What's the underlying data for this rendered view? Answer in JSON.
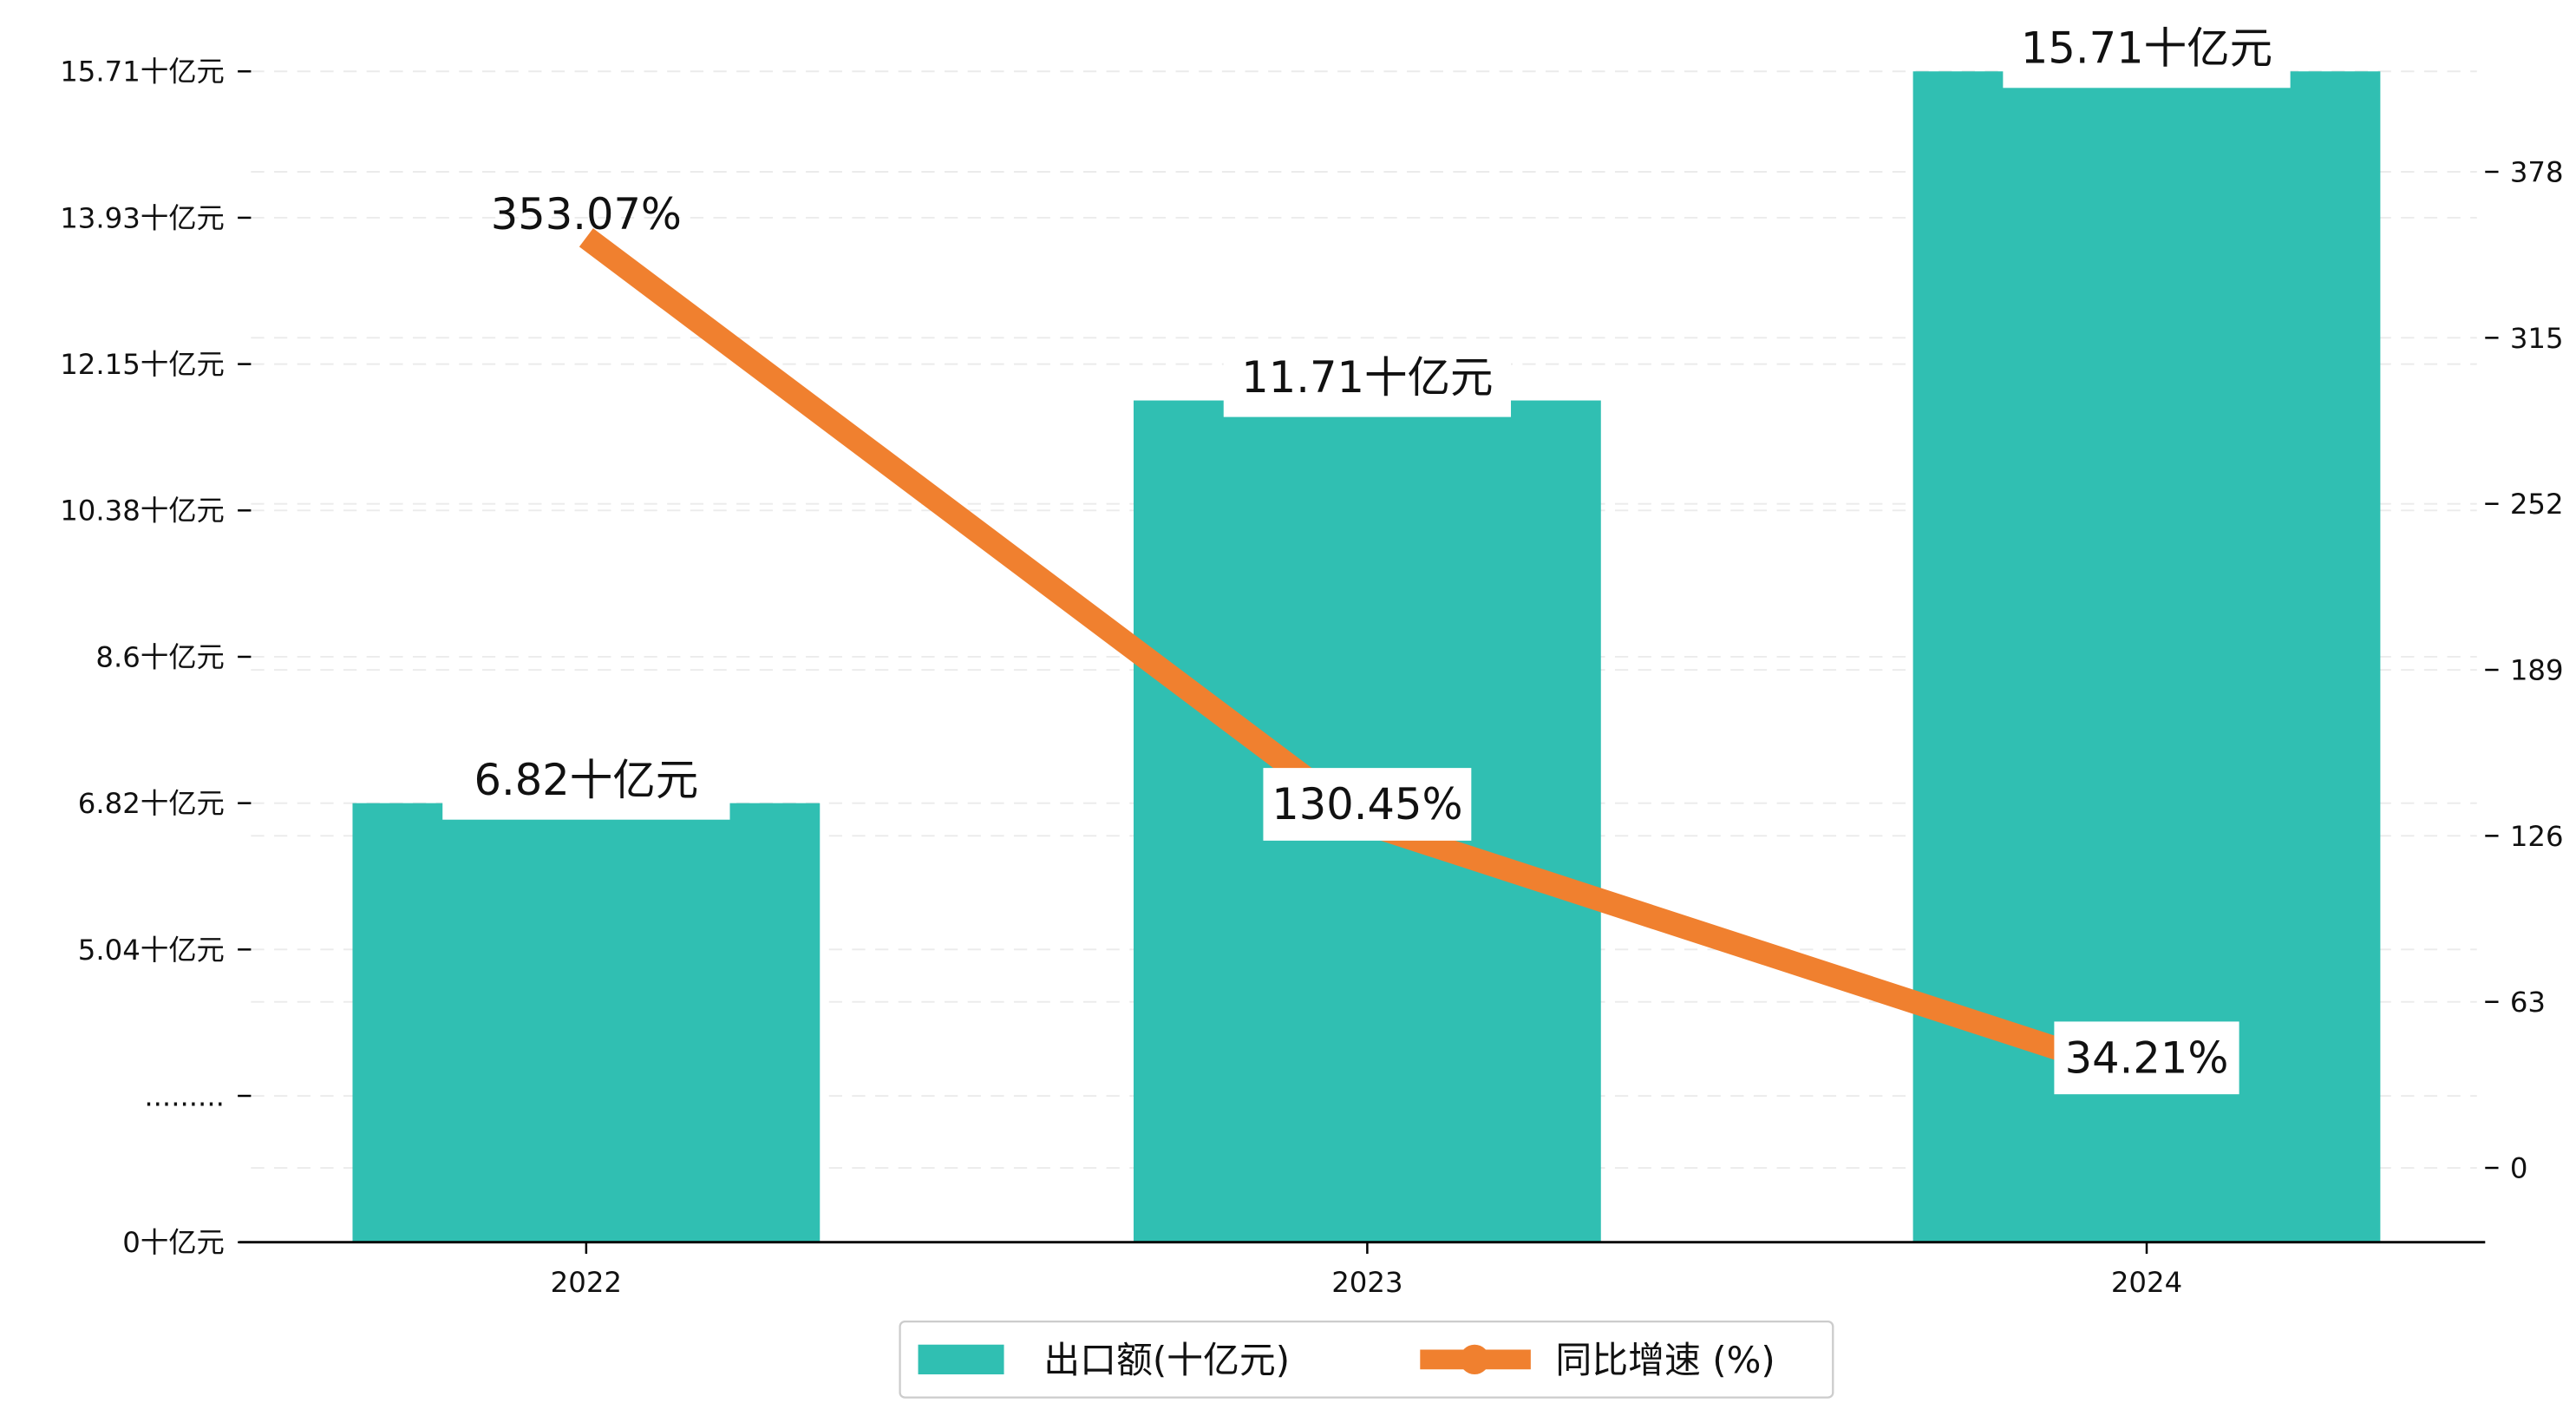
{
  "chart_data": {
    "type": "bar+line",
    "categories": [
      "2022",
      "2023",
      "2024"
    ],
    "series": [
      {
        "name": "出口额(十亿元)",
        "type": "bar",
        "axis": "left",
        "values": [
          6.82,
          11.71,
          15.71
        ],
        "labels": [
          "6.82十亿元",
          "11.71十亿元",
          "15.71十亿元"
        ],
        "color": "#30bfb2"
      },
      {
        "name": "同比增速 (%)",
        "type": "line",
        "axis": "right",
        "values": [
          353.07,
          130.45,
          34.21
        ],
        "labels": [
          "353.07%",
          "130.45%",
          "34.21%"
        ],
        "color": "#f0802f"
      }
    ],
    "left_axis": {
      "ticks": [
        {
          "value": 0,
          "label": "0十亿元"
        },
        {
          "value": null,
          "label": "........."
        },
        {
          "value": 5.04,
          "label": "5.04十亿元"
        },
        {
          "value": 6.82,
          "label": "6.82十亿元"
        },
        {
          "value": 8.6,
          "label": "8.6十亿元"
        },
        {
          "value": 10.38,
          "label": "10.38十亿元"
        },
        {
          "value": 12.15,
          "label": "12.15十亿元"
        },
        {
          "value": 13.93,
          "label": "13.93十亿元"
        },
        {
          "value": 15.71,
          "label": "15.71十亿元"
        }
      ]
    },
    "right_axis": {
      "ticks": [
        "0",
        "63",
        "126",
        "189",
        "252",
        "315",
        "378"
      ],
      "values": [
        0,
        63,
        126,
        189,
        252,
        315,
        378
      ]
    },
    "grid": true,
    "legend": {
      "placement": "bottom-center",
      "entries": [
        "出口额(十亿元)",
        "同比增速 (%)"
      ]
    },
    "title": "",
    "xlabel": "",
    "ylabel": ""
  }
}
